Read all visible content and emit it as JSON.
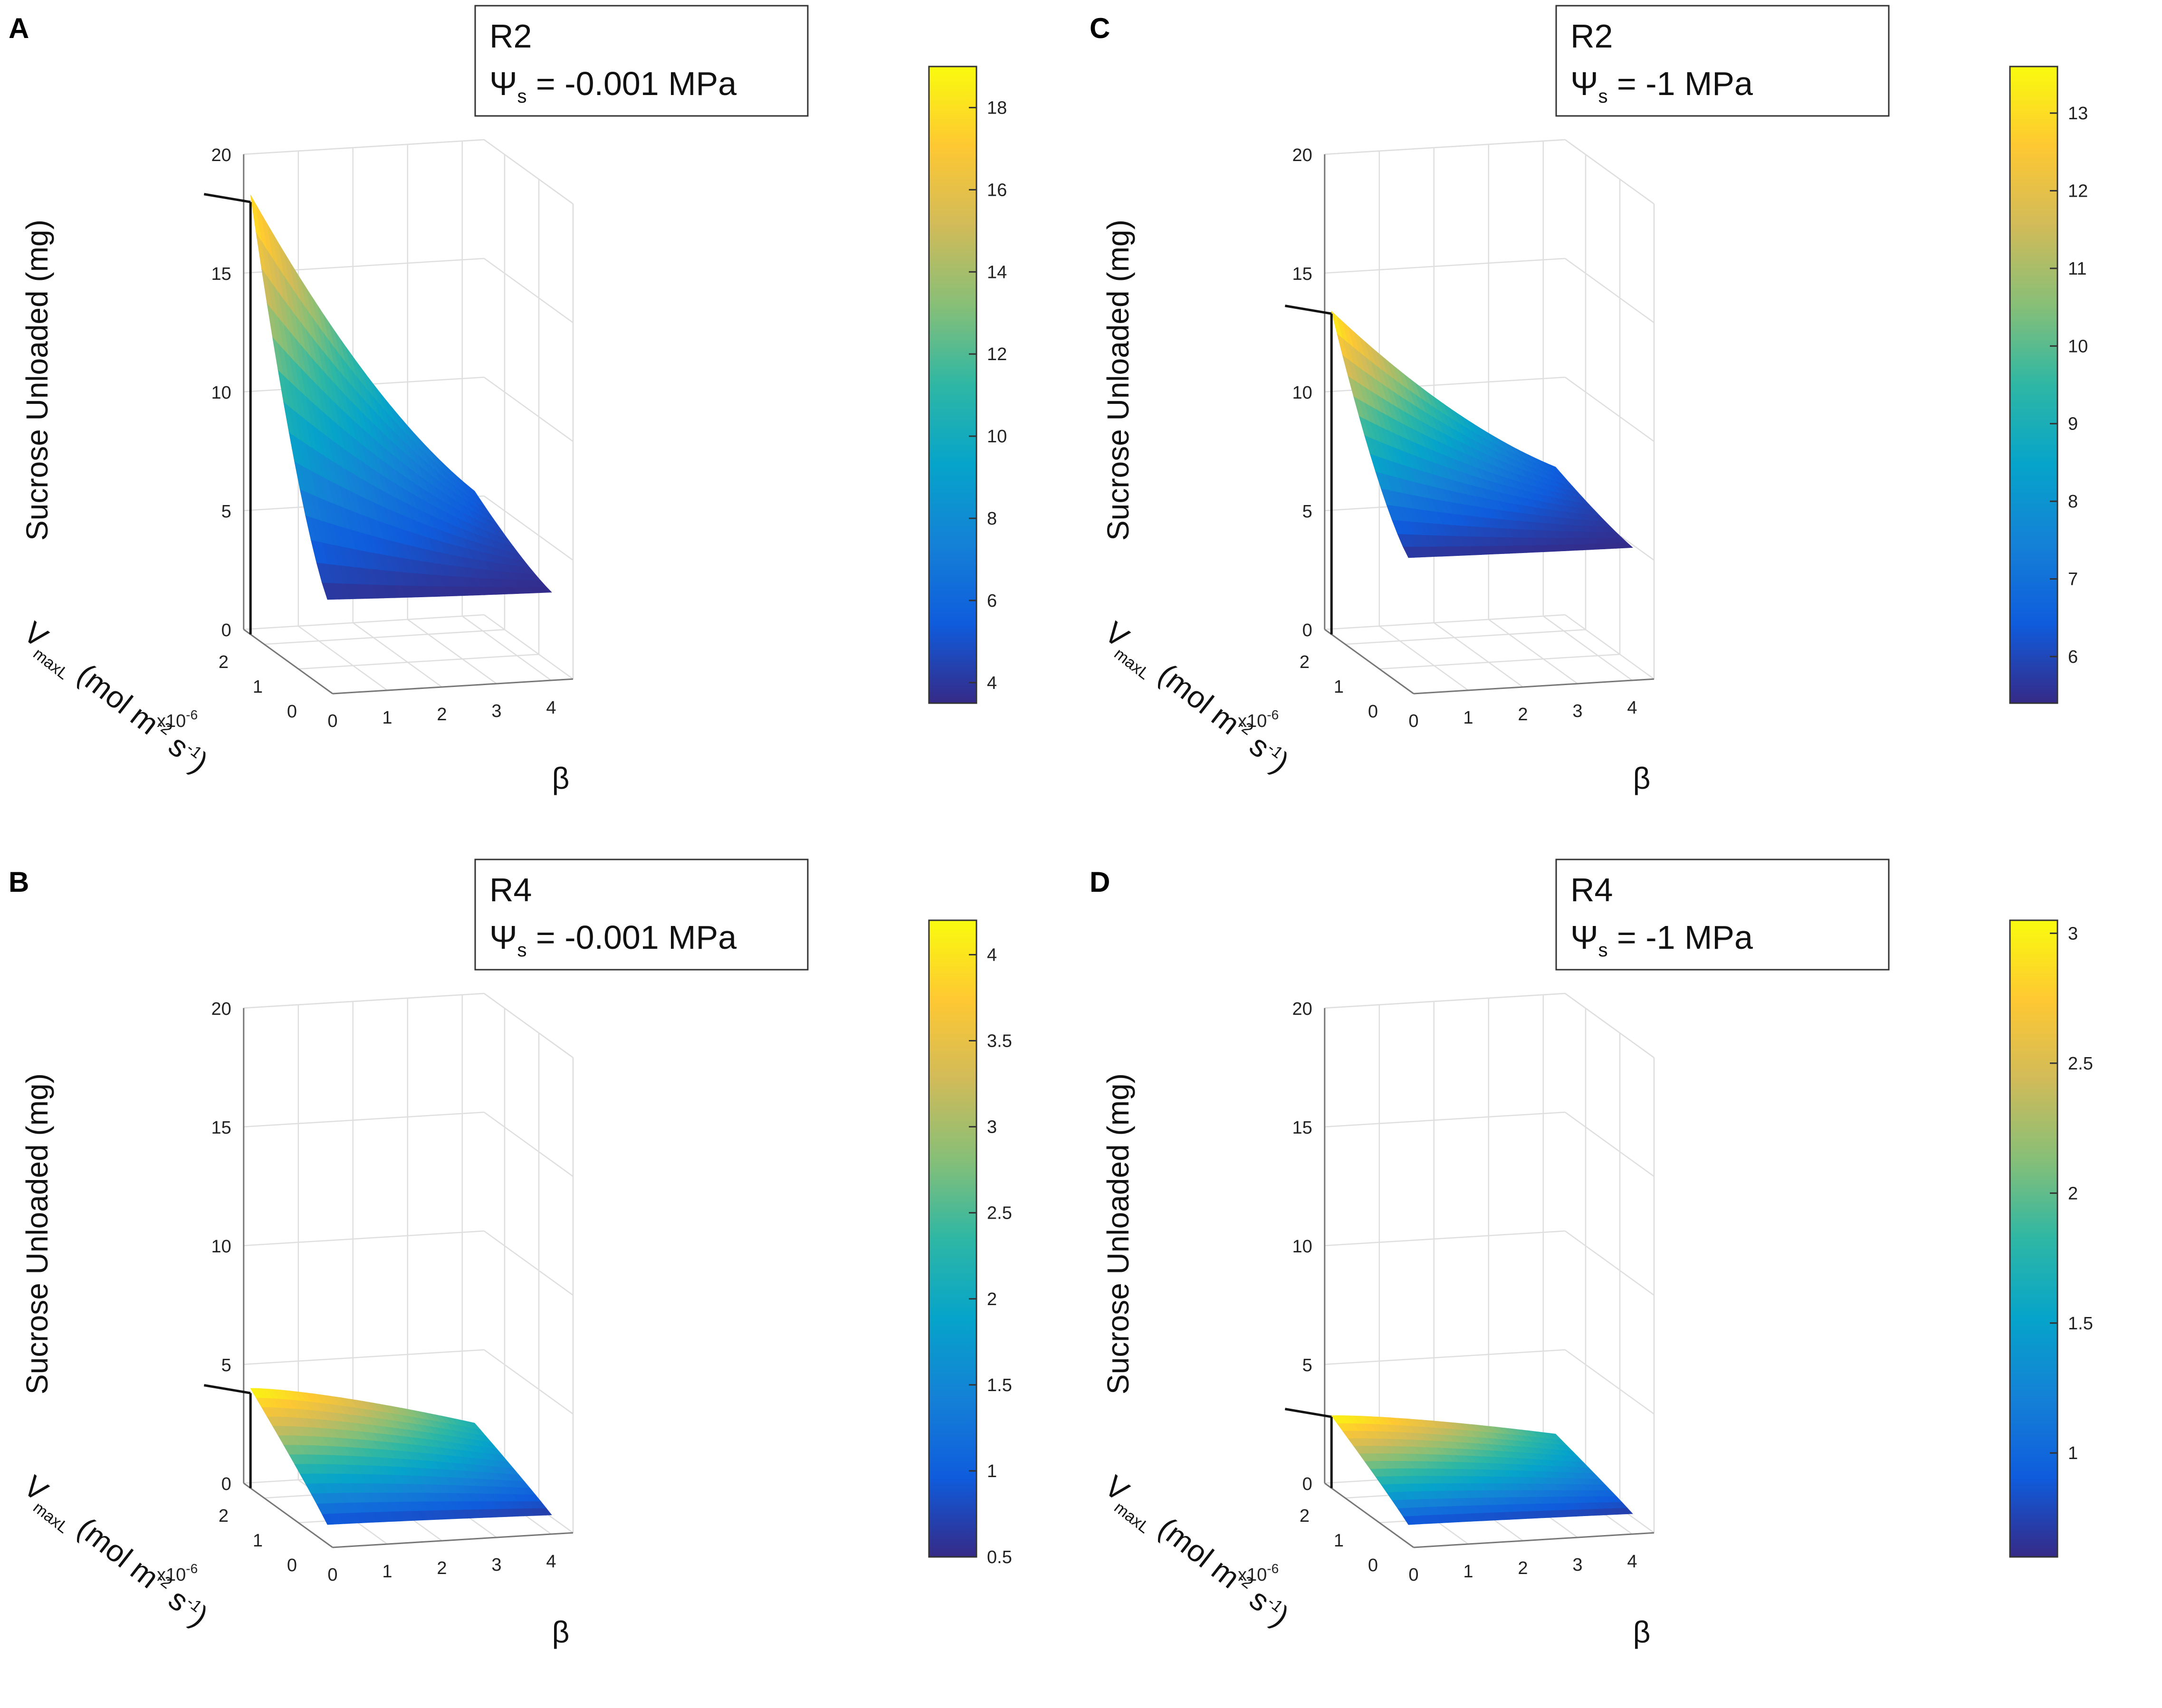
{
  "chart_data": [
    {
      "type": "surface3d",
      "panel": "A",
      "legend_line1": "R2",
      "legend_symbol": "Ψ",
      "legend_sub": "s",
      "legend_rest": "= -0.001 MPa",
      "zlabel": "Sucrose Unloaded (mg)",
      "xlabel": "β",
      "ylabel_main": "V",
      "ylabel_sub": "maxL",
      "ylabel_units": "(mol m",
      "ylabel_exp1": "-2",
      "ylabel_s": " s",
      "ylabel_exp2": "-1",
      "ylabel_close": ")",
      "y_multiplier": "x10",
      "y_multiplier_exp": "-6",
      "x_ticks": [
        "0",
        "1",
        "2",
        "3",
        "4"
      ],
      "y_ticks": [
        "0",
        "1",
        "2"
      ],
      "z_ticks": [
        "0",
        "5",
        "10",
        "15",
        "20"
      ],
      "zlim": [
        0,
        20
      ],
      "xlim": [
        0,
        4.4
      ],
      "ylim": [
        0,
        2.6
      ],
      "colorbar_ticks": [
        "4",
        "6",
        "8",
        "10",
        "12",
        "14",
        "16",
        "18"
      ],
      "colorbar_range": [
        3.5,
        19
      ],
      "max_marker": {
        "beta": 0,
        "vmax": 2.4,
        "sucrose": 18.2
      },
      "surface_peak": 18.5,
      "surface_min": 3.5
    },
    {
      "type": "surface3d",
      "panel": "B",
      "legend_line1": "R4",
      "legend_symbol": "Ψ",
      "legend_sub": "s",
      "legend_rest": "= -0.001 MPa",
      "zlabel": "Sucrose Unloaded (mg)",
      "xlabel": "β",
      "ylabel_main": "V",
      "ylabel_sub": "maxL",
      "ylabel_units": "(mol m",
      "ylabel_exp1": "-2",
      "ylabel_s": " s",
      "ylabel_exp2": "-1",
      "ylabel_close": ")",
      "y_multiplier": "x10",
      "y_multiplier_exp": "-6",
      "x_ticks": [
        "0",
        "1",
        "2",
        "3",
        "4"
      ],
      "y_ticks": [
        "0",
        "1",
        "2"
      ],
      "z_ticks": [
        "0",
        "5",
        "10",
        "15",
        "20"
      ],
      "zlim": [
        0,
        20
      ],
      "xlim": [
        0,
        4.4
      ],
      "ylim": [
        0,
        2.6
      ],
      "colorbar_ticks": [
        "0.5",
        "1",
        "1.5",
        "2",
        "2.5",
        "3",
        "3.5",
        "4"
      ],
      "colorbar_range": [
        0.5,
        4.2
      ],
      "max_marker": {
        "beta": 0,
        "vmax": 2.4,
        "sucrose": 4.0
      },
      "surface_peak": 4.2,
      "surface_min": 0.5
    },
    {
      "type": "surface3d",
      "panel": "C",
      "legend_line1": "R2",
      "legend_symbol": "Ψ",
      "legend_sub": "s",
      "legend_rest": "= -1 MPa",
      "zlabel": "Sucrose Unloaded (mg)",
      "xlabel": "β",
      "ylabel_main": "V",
      "ylabel_sub": "maxL",
      "ylabel_units": "(mol m",
      "ylabel_exp1": "-2",
      "ylabel_s": " s",
      "ylabel_exp2": "-1",
      "ylabel_close": ")",
      "y_multiplier": "x10",
      "y_multiplier_exp": "-6",
      "x_ticks": [
        "0",
        "1",
        "2",
        "3",
        "4"
      ],
      "y_ticks": [
        "0",
        "1",
        "2"
      ],
      "z_ticks": [
        "0",
        "5",
        "10",
        "15",
        "20"
      ],
      "zlim": [
        0,
        20
      ],
      "xlim": [
        0,
        4.4
      ],
      "ylim": [
        0,
        2.6
      ],
      "colorbar_ticks": [
        "6",
        "7",
        "8",
        "9",
        "10",
        "11",
        "12",
        "13"
      ],
      "colorbar_range": [
        5.4,
        13.6
      ],
      "max_marker": {
        "beta": 0,
        "vmax": 2.4,
        "sucrose": 13.5
      },
      "surface_peak": 13.6,
      "surface_min": 5.4
    },
    {
      "type": "surface3d",
      "panel": "D",
      "legend_line1": "R4",
      "legend_symbol": "Ψ",
      "legend_sub": "s",
      "legend_rest": "= -1 MPa",
      "zlabel": "Sucrose Unloaded (mg)",
      "xlabel": "β",
      "ylabel_main": "V",
      "ylabel_sub": "maxL",
      "ylabel_units": "(mol m",
      "ylabel_exp1": "-2",
      "ylabel_s": " s",
      "ylabel_exp2": "-1",
      "ylabel_close": ")",
      "y_multiplier": "x10",
      "y_multiplier_exp": "-6",
      "x_ticks": [
        "0",
        "1",
        "2",
        "3",
        "4"
      ],
      "y_ticks": [
        "0",
        "1",
        "2"
      ],
      "z_ticks": [
        "0",
        "5",
        "10",
        "15",
        "20"
      ],
      "zlim": [
        0,
        20
      ],
      "xlim": [
        0,
        4.4
      ],
      "ylim": [
        0,
        2.6
      ],
      "colorbar_ticks": [
        "1",
        "1.5",
        "2",
        "2.5",
        "3"
      ],
      "colorbar_range": [
        0.6,
        3.05
      ],
      "max_marker": {
        "beta": 0,
        "vmax": 2.4,
        "sucrose": 3.0
      },
      "surface_peak": 3.05,
      "surface_min": 0.6
    }
  ],
  "colormap": [
    "#352a87",
    "#0f5cdd",
    "#1481d6",
    "#06a4ca",
    "#2eb7a4",
    "#87bf77",
    "#d1bb59",
    "#fec832",
    "#f9fb0e"
  ]
}
